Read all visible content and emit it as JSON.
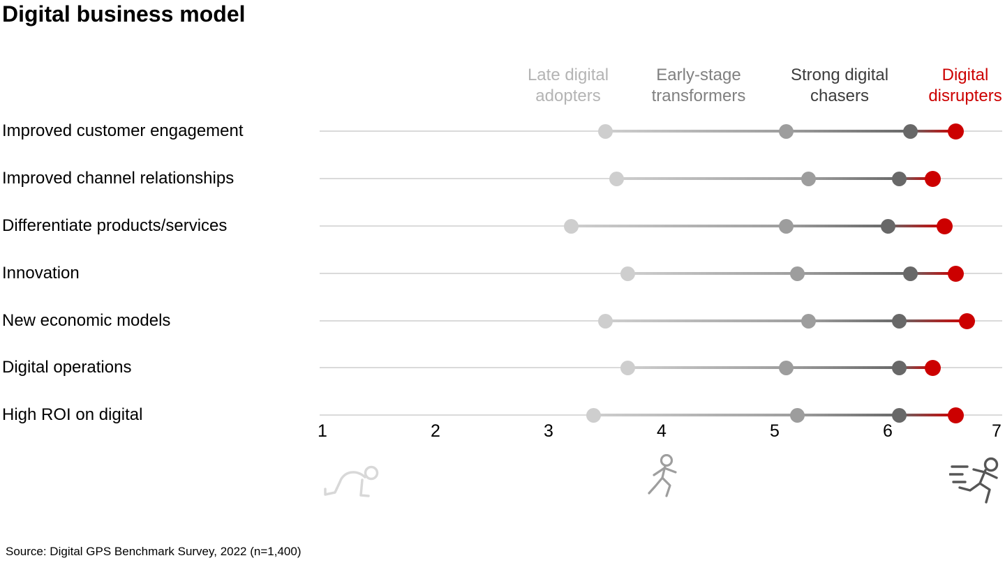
{
  "title": "Digital business model",
  "source": "Source: Digital GPS Benchmark Survey, 2022 (n=1,400)",
  "chart_data": {
    "type": "dot-plot",
    "title": "Digital business model",
    "categories": [
      "Improved customer engagement",
      "Improved channel relationships",
      "Differentiate products/services",
      "Innovation",
      "New economic models",
      "Digital operations",
      "High ROI on digital"
    ],
    "series": [
      {
        "name": "Late digital adopters",
        "dot_color": "#cecece",
        "legend_color": "#b4b4b4",
        "values": [
          3.5,
          3.6,
          3.2,
          3.7,
          3.5,
          3.7,
          3.4
        ]
      },
      {
        "name": "Early-stage transformers",
        "dot_color": "#9d9d9d",
        "legend_color": "#808080",
        "values": [
          5.1,
          5.3,
          5.1,
          5.2,
          5.3,
          5.1,
          5.2
        ]
      },
      {
        "name": "Strong digital chasers",
        "dot_color": "#686868",
        "legend_color": "#3c3c3c",
        "values": [
          6.2,
          6.1,
          6.0,
          6.2,
          6.1,
          6.1,
          6.1
        ]
      },
      {
        "name": "Digital disrupters",
        "dot_color": "#cc0000",
        "legend_color": "#cc0000",
        "values": [
          6.6,
          6.4,
          6.5,
          6.6,
          6.7,
          6.4,
          6.6
        ]
      }
    ],
    "x_axis": {
      "min": 1,
      "max": 7,
      "ticks": [
        "1",
        "2",
        "3",
        "4",
        "5",
        "6",
        "7"
      ]
    },
    "baseline_color": "#dadada",
    "legend_position": "top",
    "icons": [
      "crawling-person",
      "walking-person",
      "sprinting-person"
    ]
  }
}
